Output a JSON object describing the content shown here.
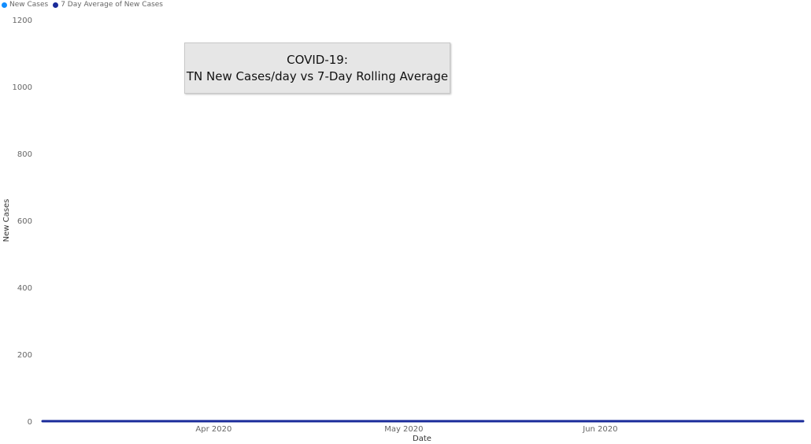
{
  "legend": {
    "items": [
      {
        "label": "New Cases",
        "color": "#118dff"
      },
      {
        "label": "7 Day Average of New Cases",
        "color": "#1a2b9a"
      }
    ]
  },
  "title_box": {
    "line1": "COVID-19:",
    "line2": "TN New Cases/day vs 7-Day Rolling Average"
  },
  "chart_data": {
    "type": "bar",
    "xlabel": "Date",
    "ylabel": "New Cases",
    "ylim": [
      0,
      1200
    ],
    "yticks": [
      0,
      200,
      400,
      600,
      800,
      1000,
      1200
    ],
    "x_start": "2020-03-05",
    "xticks": [
      {
        "label": "Apr 2020",
        "date": "2020-04-01"
      },
      {
        "label": "May 2020",
        "date": "2020-05-01"
      },
      {
        "label": "Jun 2020",
        "date": "2020-06-01"
      }
    ],
    "grid": false,
    "legend_position": "top-left",
    "series": [
      {
        "name": "New Cases",
        "type": "bar",
        "color": "#118dff",
        "values": [
          0,
          0,
          0,
          0,
          0,
          0,
          0,
          0,
          0,
          0,
          0,
          0,
          0,
          0,
          0,
          0,
          0,
          0,
          0,
          0,
          0,
          0,
          0,
          0,
          0,
          0,
          0,
          0,
          0,
          0,
          0,
          0,
          0,
          0,
          0,
          0,
          0,
          0,
          0,
          0,
          0,
          0,
          0,
          0,
          0,
          0,
          0,
          0,
          0,
          0,
          0,
          0,
          0,
          0,
          0,
          0,
          0,
          0,
          0,
          0,
          0,
          0,
          0,
          0,
          0,
          0,
          0,
          0,
          0,
          0,
          0,
          0,
          0,
          0,
          0,
          0,
          0,
          0,
          0,
          0,
          0,
          0,
          0,
          0,
          0,
          0,
          0,
          0,
          0,
          0,
          0,
          0,
          0,
          0,
          0,
          0,
          0,
          0,
          0,
          0,
          0,
          0,
          0,
          0,
          0,
          0,
          0,
          0,
          0,
          0,
          0,
          0,
          0,
          0,
          0,
          0,
          0,
          0,
          0,
          0,
          0
        ]
      },
      {
        "name": "7 Day Average of New Cases",
        "type": "line",
        "color": "#1a2b9a",
        "values": [
          0,
          0,
          0,
          0,
          0,
          0,
          0,
          0,
          0,
          0,
          0,
          0,
          0,
          0,
          0,
          0,
          0,
          0,
          0,
          0,
          0,
          0,
          0,
          0,
          0,
          0,
          0,
          0,
          0,
          0,
          0,
          0,
          0,
          0,
          0,
          0,
          0,
          0,
          0,
          0,
          0,
          0,
          0,
          0,
          0,
          0,
          0,
          0,
          0,
          0,
          0,
          0,
          0,
          0,
          0,
          0,
          0,
          0,
          0,
          0,
          0,
          0,
          0,
          0,
          0,
          0,
          0,
          0,
          0,
          0,
          0,
          0,
          0,
          0,
          0,
          0,
          0,
          0,
          0,
          0,
          0,
          0,
          0,
          0,
          0,
          0,
          0,
          0,
          0,
          0,
          0,
          0,
          0,
          0,
          0,
          0,
          0,
          0,
          0,
          0,
          0,
          0,
          0,
          0,
          0,
          0,
          0,
          0,
          0,
          0,
          0,
          0,
          0,
          0,
          0,
          0,
          0,
          0,
          0,
          0,
          0
        ]
      }
    ]
  }
}
